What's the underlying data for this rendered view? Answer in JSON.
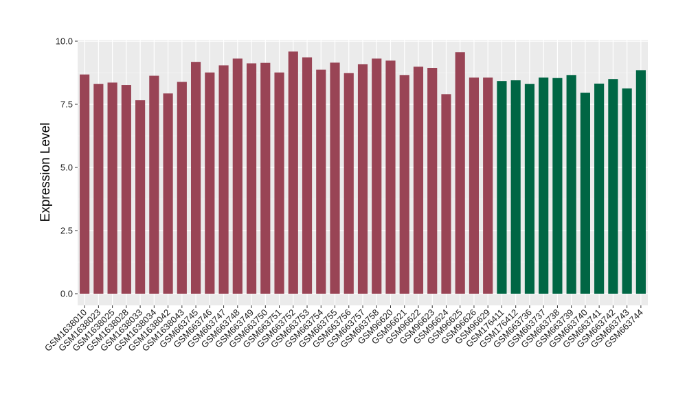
{
  "chart_data": {
    "type": "bar",
    "title": "",
    "xlabel": "",
    "ylabel": "Expression Level",
    "ylim": [
      0,
      10
    ],
    "yticks": [
      "0.0",
      "2.5",
      "5.0",
      "7.5",
      "10.0"
    ],
    "grid": true,
    "legend": "none",
    "panel_color": "#ebebeb",
    "categories": [
      "GSM1638010",
      "GSM1638023",
      "GSM1638025",
      "GSM1638028",
      "GSM1638033",
      "GSM1638034",
      "GSM1638042",
      "GSM1638043",
      "GSM663745",
      "GSM663746",
      "GSM663747",
      "GSM663748",
      "GSM663749",
      "GSM663750",
      "GSM663751",
      "GSM663752",
      "GSM663753",
      "GSM663754",
      "GSM663755",
      "GSM663756",
      "GSM663757",
      "GSM663758",
      "GSM96620",
      "GSM96621",
      "GSM96622",
      "GSM96623",
      "GSM96624",
      "GSM96625",
      "GSM96626",
      "GSM96629",
      "GSM176411",
      "GSM176412",
      "GSM663736",
      "GSM663737",
      "GSM663738",
      "GSM663739",
      "GSM663740",
      "GSM663741",
      "GSM663742",
      "GSM663743",
      "GSM663744"
    ],
    "values": [
      8.68,
      8.31,
      8.36,
      8.26,
      7.66,
      8.63,
      7.93,
      8.39,
      9.18,
      8.76,
      9.04,
      9.31,
      9.12,
      9.14,
      8.76,
      9.59,
      9.36,
      8.87,
      9.15,
      8.74,
      9.09,
      9.31,
      9.23,
      8.66,
      8.99,
      8.94,
      7.9,
      9.56,
      8.56,
      8.56,
      8.42,
      8.45,
      8.31,
      8.56,
      8.54,
      8.66,
      7.96,
      8.32,
      8.5,
      8.13,
      8.85
    ],
    "group_colors": [
      "#994455",
      "#006644"
    ],
    "groups": [
      0,
      0,
      0,
      0,
      0,
      0,
      0,
      0,
      0,
      0,
      0,
      0,
      0,
      0,
      0,
      0,
      0,
      0,
      0,
      0,
      0,
      0,
      0,
      0,
      0,
      0,
      0,
      0,
      0,
      0,
      1,
      1,
      1,
      1,
      1,
      1,
      1,
      1,
      1,
      1,
      1
    ]
  }
}
